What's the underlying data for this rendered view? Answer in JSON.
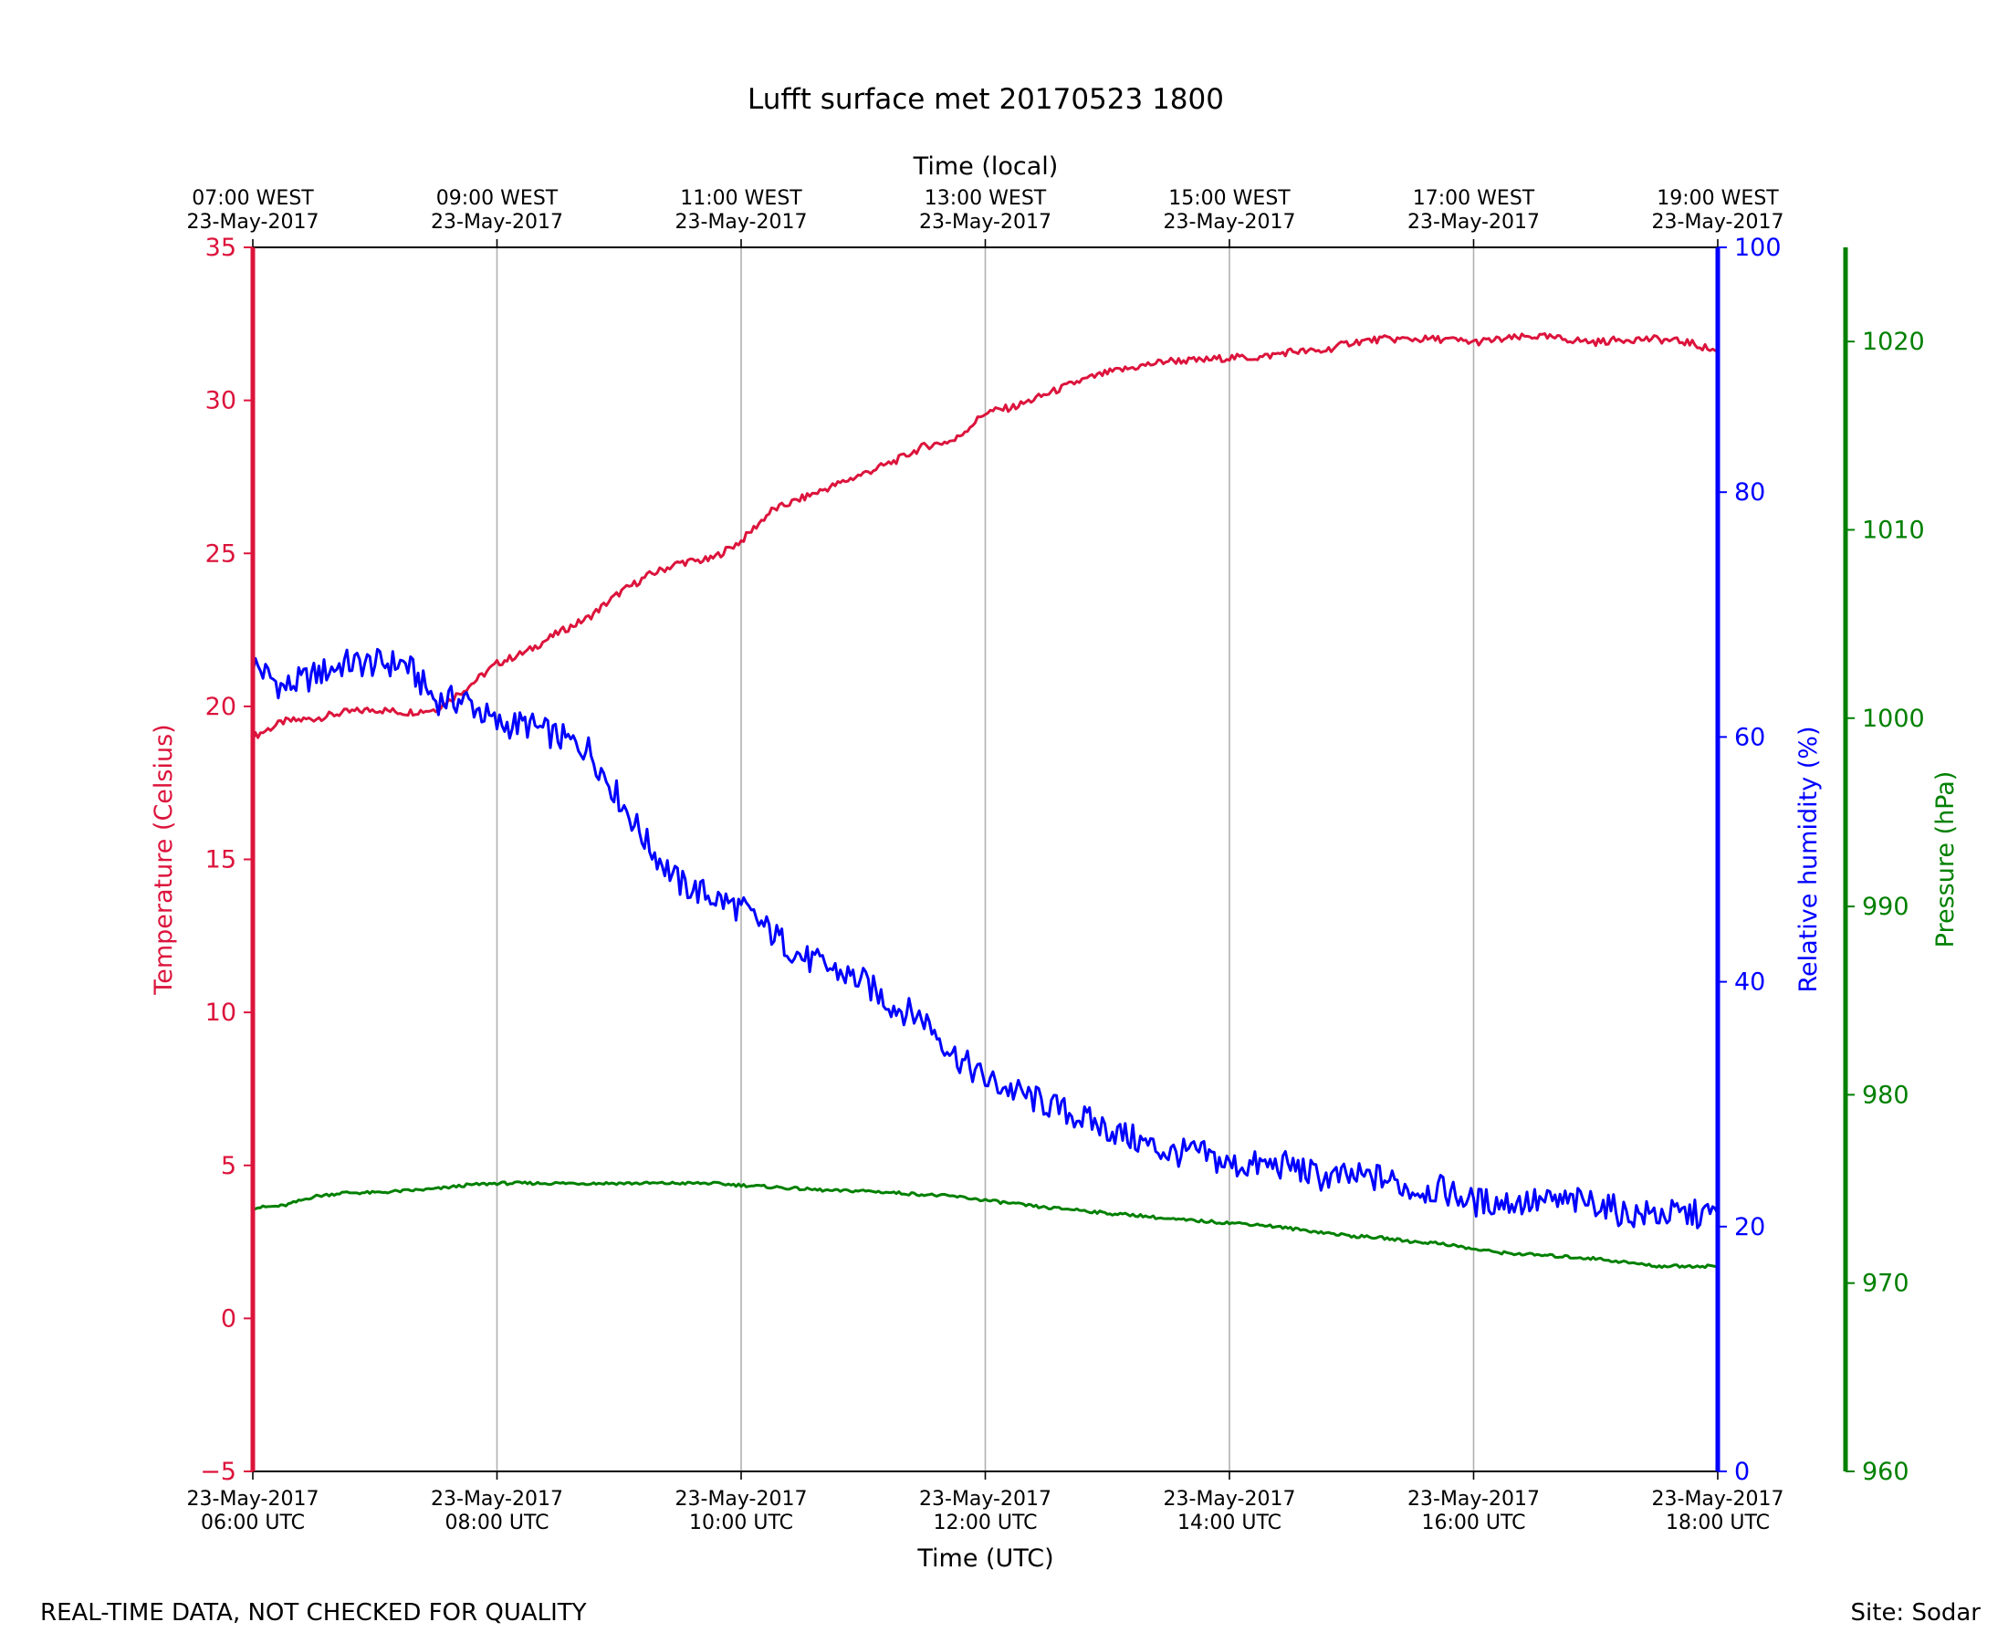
{
  "chart_data": {
    "type": "line",
    "title": "Lufft surface met 20170523 1800",
    "top_axis": {
      "label": "Time (local)",
      "ticks": [
        {
          "x": 6,
          "line1": "07:00 WEST",
          "line2": "23-May-2017"
        },
        {
          "x": 8,
          "line1": "09:00 WEST",
          "line2": "23-May-2017"
        },
        {
          "x": 10,
          "line1": "11:00 WEST",
          "line2": "23-May-2017"
        },
        {
          "x": 12,
          "line1": "13:00 WEST",
          "line2": "23-May-2017"
        },
        {
          "x": 14,
          "line1": "15:00 WEST",
          "line2": "23-May-2017"
        },
        {
          "x": 16,
          "line1": "17:00 WEST",
          "line2": "23-May-2017"
        },
        {
          "x": 18,
          "line1": "19:00 WEST",
          "line2": "23-May-2017"
        }
      ]
    },
    "x_axis": {
      "label": "Time (UTC)",
      "range": [
        6,
        18
      ],
      "ticks": [
        {
          "x": 6,
          "line1": "23-May-2017",
          "line2": "06:00 UTC"
        },
        {
          "x": 8,
          "line1": "23-May-2017",
          "line2": "08:00 UTC"
        },
        {
          "x": 10,
          "line1": "23-May-2017",
          "line2": "10:00 UTC"
        },
        {
          "x": 12,
          "line1": "23-May-2017",
          "line2": "12:00 UTC"
        },
        {
          "x": 14,
          "line1": "23-May-2017",
          "line2": "14:00 UTC"
        },
        {
          "x": 16,
          "line1": "23-May-2017",
          "line2": "16:00 UTC"
        },
        {
          "x": 18,
          "line1": "23-May-2017",
          "line2": "18:00 UTC"
        }
      ]
    },
    "axes": [
      {
        "id": "temp",
        "label": "Temperature (Celsius)",
        "range": [
          -5,
          35
        ],
        "ticks": [
          -5,
          0,
          5,
          10,
          15,
          20,
          25,
          30,
          35
        ],
        "tick_labels": [
          "−5",
          "0",
          "5",
          "10",
          "15",
          "20",
          "25",
          "30",
          "35"
        ],
        "color": "#dc143c",
        "side": "left"
      },
      {
        "id": "rh",
        "label": "Relative humidity (%)",
        "range": [
          0,
          100
        ],
        "ticks": [
          0,
          20,
          40,
          60,
          80,
          100
        ],
        "tick_labels": [
          "0",
          "20",
          "40",
          "60",
          "80",
          "100"
        ],
        "color": "#0000ff",
        "side": "right"
      },
      {
        "id": "pres",
        "label": "Pressure (hPa)",
        "range": [
          960,
          1025
        ],
        "ticks": [
          960,
          970,
          980,
          990,
          1000,
          1010,
          1020
        ],
        "tick_labels": [
          "960",
          "970",
          "980",
          "990",
          "1000",
          "1010",
          "1020"
        ],
        "color": "#008000",
        "side": "right-offset"
      }
    ],
    "grid": "vertical",
    "series": [
      {
        "axis": "temp",
        "color": "#dc143c",
        "x": [
          6.0,
          6.25,
          6.5,
          6.75,
          7.0,
          7.25,
          7.5,
          7.75,
          8.0,
          8.25,
          8.5,
          8.75,
          9.0,
          9.25,
          9.5,
          9.75,
          10.0,
          10.25,
          10.5,
          10.75,
          11.0,
          11.25,
          11.5,
          11.75,
          12.0,
          12.25,
          12.5,
          12.75,
          13.0,
          13.25,
          13.5,
          13.75,
          14.0,
          14.25,
          14.5,
          14.75,
          15.0,
          15.25,
          15.5,
          15.75,
          16.0,
          16.25,
          16.5,
          16.75,
          17.0,
          17.25,
          17.5,
          17.75,
          18.0
        ],
        "y": [
          19.0,
          19.5,
          19.6,
          19.8,
          19.9,
          19.8,
          19.9,
          20.6,
          21.4,
          21.8,
          22.4,
          22.9,
          23.7,
          24.3,
          24.7,
          24.8,
          25.4,
          26.4,
          26.8,
          27.2,
          27.6,
          28.0,
          28.5,
          28.7,
          29.6,
          29.8,
          30.2,
          30.6,
          30.9,
          31.1,
          31.3,
          31.3,
          31.4,
          31.4,
          31.6,
          31.6,
          31.9,
          32.0,
          32.0,
          32.0,
          31.9,
          32.0,
          32.1,
          32.0,
          31.9,
          32.0,
          32.0,
          31.9,
          31.6
        ]
      },
      {
        "axis": "rh",
        "color": "#0000ff",
        "x": [
          6.0,
          6.25,
          6.5,
          6.75,
          7.0,
          7.25,
          7.5,
          7.75,
          8.0,
          8.25,
          8.5,
          8.75,
          9.0,
          9.25,
          9.5,
          9.75,
          10.0,
          10.25,
          10.5,
          10.75,
          11.0,
          11.25,
          11.5,
          11.75,
          12.0,
          12.25,
          12.5,
          12.75,
          13.0,
          13.25,
          13.5,
          13.75,
          14.0,
          14.25,
          14.5,
          14.75,
          15.0,
          15.25,
          15.5,
          15.75,
          16.0,
          16.25,
          16.5,
          16.75,
          17.0,
          17.25,
          17.5,
          17.75,
          18.0
        ],
        "y": [
          66,
          64,
          65,
          66,
          66,
          66,
          63,
          63,
          61,
          61,
          60,
          59,
          55,
          51,
          48,
          47,
          46,
          44,
          42,
          41,
          40,
          38,
          37,
          34,
          32,
          31,
          30,
          29,
          28,
          27,
          26,
          26,
          25,
          25,
          25,
          24,
          24,
          24,
          23,
          23,
          22,
          22,
          22,
          22,
          22,
          21,
          21,
          21,
          21
        ]
      },
      {
        "axis": "pres",
        "color": "#008000",
        "x": [
          6.0,
          6.25,
          6.5,
          6.75,
          7.0,
          7.25,
          7.5,
          7.75,
          8.0,
          8.25,
          8.5,
          8.75,
          9.0,
          9.25,
          9.5,
          9.75,
          10.0,
          10.25,
          10.5,
          10.75,
          11.0,
          11.25,
          11.5,
          11.75,
          12.0,
          12.25,
          12.5,
          12.75,
          13.0,
          13.25,
          13.5,
          13.75,
          14.0,
          14.25,
          14.5,
          14.75,
          15.0,
          15.25,
          15.5,
          15.75,
          16.0,
          16.25,
          16.5,
          16.75,
          17.0,
          17.25,
          17.5,
          17.75,
          18.0
        ],
        "y": [
          974.0,
          974.1,
          974.6,
          974.8,
          974.8,
          974.9,
          975.0,
          975.2,
          975.3,
          975.3,
          975.3,
          975.3,
          975.3,
          975.3,
          975.3,
          975.3,
          975.2,
          975.1,
          975.0,
          974.9,
          974.9,
          974.8,
          974.7,
          974.6,
          974.4,
          974.2,
          974.0,
          973.9,
          973.7,
          973.6,
          973.4,
          973.3,
          973.2,
          973.1,
          972.9,
          972.7,
          972.5,
          972.4,
          972.2,
          972.1,
          971.8,
          971.6,
          971.5,
          971.4,
          971.3,
          971.1,
          970.9,
          970.9,
          970.9
        ]
      }
    ]
  },
  "footer": {
    "left_note": "REAL-TIME DATA, NOT CHECKED FOR QUALITY",
    "site": "Site: Sodar"
  }
}
